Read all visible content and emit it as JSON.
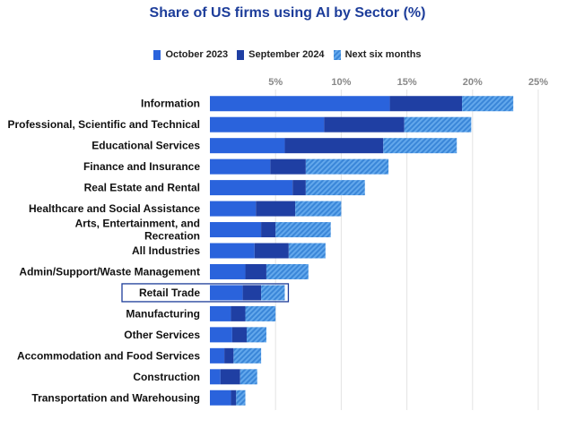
{
  "chart_data": {
    "type": "bar",
    "orientation": "horizontal",
    "stacked": true,
    "title": "Share of US firms using AI by Sector (%)",
    "xlabel": "",
    "ylabel": "",
    "xlim": [
      0,
      25
    ],
    "x_ticks": [
      5,
      10,
      15,
      20,
      25
    ],
    "x_tick_labels": [
      "5%",
      "10%",
      "15%",
      "20%",
      "25%"
    ],
    "legend_position": "top-center",
    "categories": [
      "Information",
      "Professional, Scientific and Technical",
      "Educational Services",
      "Finance and Insurance",
      "Real Estate and Rental",
      "Healthcare and Social Assistance",
      "Arts, Entertainment, and Recreation",
      "All Industries",
      "Admin/Support/Waste Management",
      "Retail Trade",
      "Manufacturing",
      "Other Services",
      "Accommodation and Food Services",
      "Construction",
      "Transportation and Warehousing"
    ],
    "category_label_lines": [
      [
        "Information"
      ],
      [
        "Professional, Scientific and Technical"
      ],
      [
        "Educational Services"
      ],
      [
        "Finance and Insurance"
      ],
      [
        "Real Estate and Rental"
      ],
      [
        "Healthcare and Social Assistance"
      ],
      [
        "Arts, Entertainment, and",
        "Recreation"
      ],
      [
        "All Industries"
      ],
      [
        "Admin/Support/Waste Management"
      ],
      [
        "Retail Trade"
      ],
      [
        "Manufacturing"
      ],
      [
        "Other Services"
      ],
      [
        "Accommodation and Food Services"
      ],
      [
        "Construction"
      ],
      [
        "Transportation and Warehousing"
      ]
    ],
    "highlighted_category": "Retail Trade",
    "series": [
      {
        "name": "October 2023",
        "color": "#2a63dc",
        "pattern": "solid",
        "values": [
          13.7,
          8.7,
          5.7,
          4.6,
          6.3,
          3.5,
          3.9,
          3.4,
          2.7,
          2.5,
          1.6,
          1.7,
          1.1,
          0.8,
          1.6
        ]
      },
      {
        "name": "September 2024",
        "color": "#1f3fa3",
        "pattern": "solid",
        "values": [
          5.5,
          6.1,
          7.5,
          2.7,
          1.0,
          3.0,
          1.1,
          2.6,
          1.6,
          1.4,
          1.1,
          1.1,
          0.7,
          1.5,
          0.4
        ]
      },
      {
        "name": "Next six months",
        "color": "#3a86d8",
        "pattern": "hatched",
        "values": [
          3.9,
          5.1,
          5.6,
          6.3,
          4.5,
          3.5,
          4.2,
          2.8,
          3.2,
          1.8,
          2.3,
          1.5,
          2.1,
          1.3,
          0.7
        ]
      }
    ]
  }
}
